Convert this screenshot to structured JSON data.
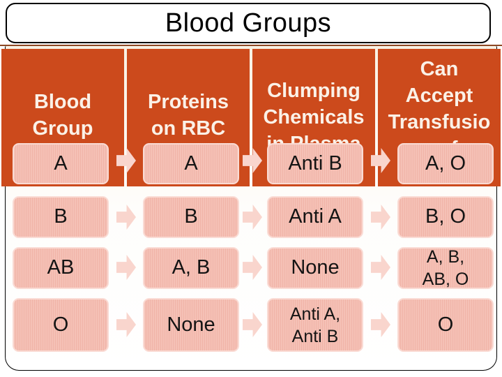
{
  "slide": {
    "title": "Blood Groups"
  },
  "diagram": {
    "headers": [
      {
        "lines": [
          "Blood",
          "Group"
        ]
      },
      {
        "lines": [
          "Proteins",
          "on RBC"
        ]
      },
      {
        "lines": [
          "Clumping",
          "Chemicals",
          "in Plasma"
        ]
      },
      {
        "lines": [
          "Can",
          "Accept",
          "Transfusio",
          "n of"
        ]
      }
    ],
    "rows": [
      {
        "cells": [
          "A",
          "A",
          "Anti B",
          "A, O"
        ]
      },
      {
        "cells": [
          "B",
          "B",
          "Anti A",
          "B, O"
        ]
      },
      {
        "cells": [
          "AB",
          "A, B",
          "None",
          "A, B,\nAB, O"
        ]
      },
      {
        "cells": [
          "O",
          "None",
          "Anti A,\nAnti B",
          "O"
        ]
      }
    ]
  },
  "colors": {
    "header_fill": "#CC4A1C",
    "cell_fill": "#F5C1B6",
    "arrow_fill": "#F9D5CD",
    "divider_line": "#8D4723",
    "header_text": "#FBF1E7",
    "title_text": "#000000"
  }
}
